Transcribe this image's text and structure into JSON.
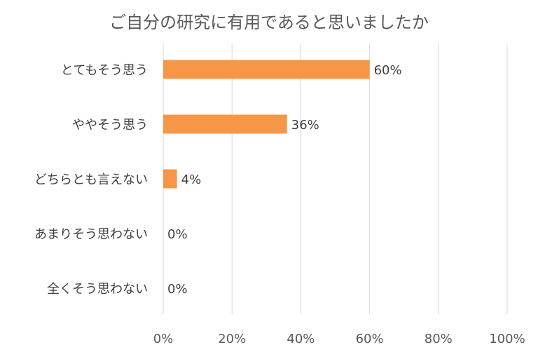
{
  "chart_data": {
    "type": "bar",
    "orientation": "horizontal",
    "title": "ご自分の研究に有用であると思いましたか",
    "categories": [
      "とてもそう思う",
      "ややそう思う",
      "どちらとも言えない",
      "あまりそう思わない",
      "全くそう思わない"
    ],
    "values": [
      60,
      36,
      4,
      0,
      0
    ],
    "data_labels": [
      "60%",
      "36%",
      "4%",
      "0%",
      "0%"
    ],
    "xlim": [
      0,
      100
    ],
    "x_ticks": [
      "0%",
      "20%",
      "40%",
      "60%",
      "80%",
      "100%"
    ],
    "grid": "vertical",
    "legend": "none",
    "bar_color": "#F79646"
  }
}
